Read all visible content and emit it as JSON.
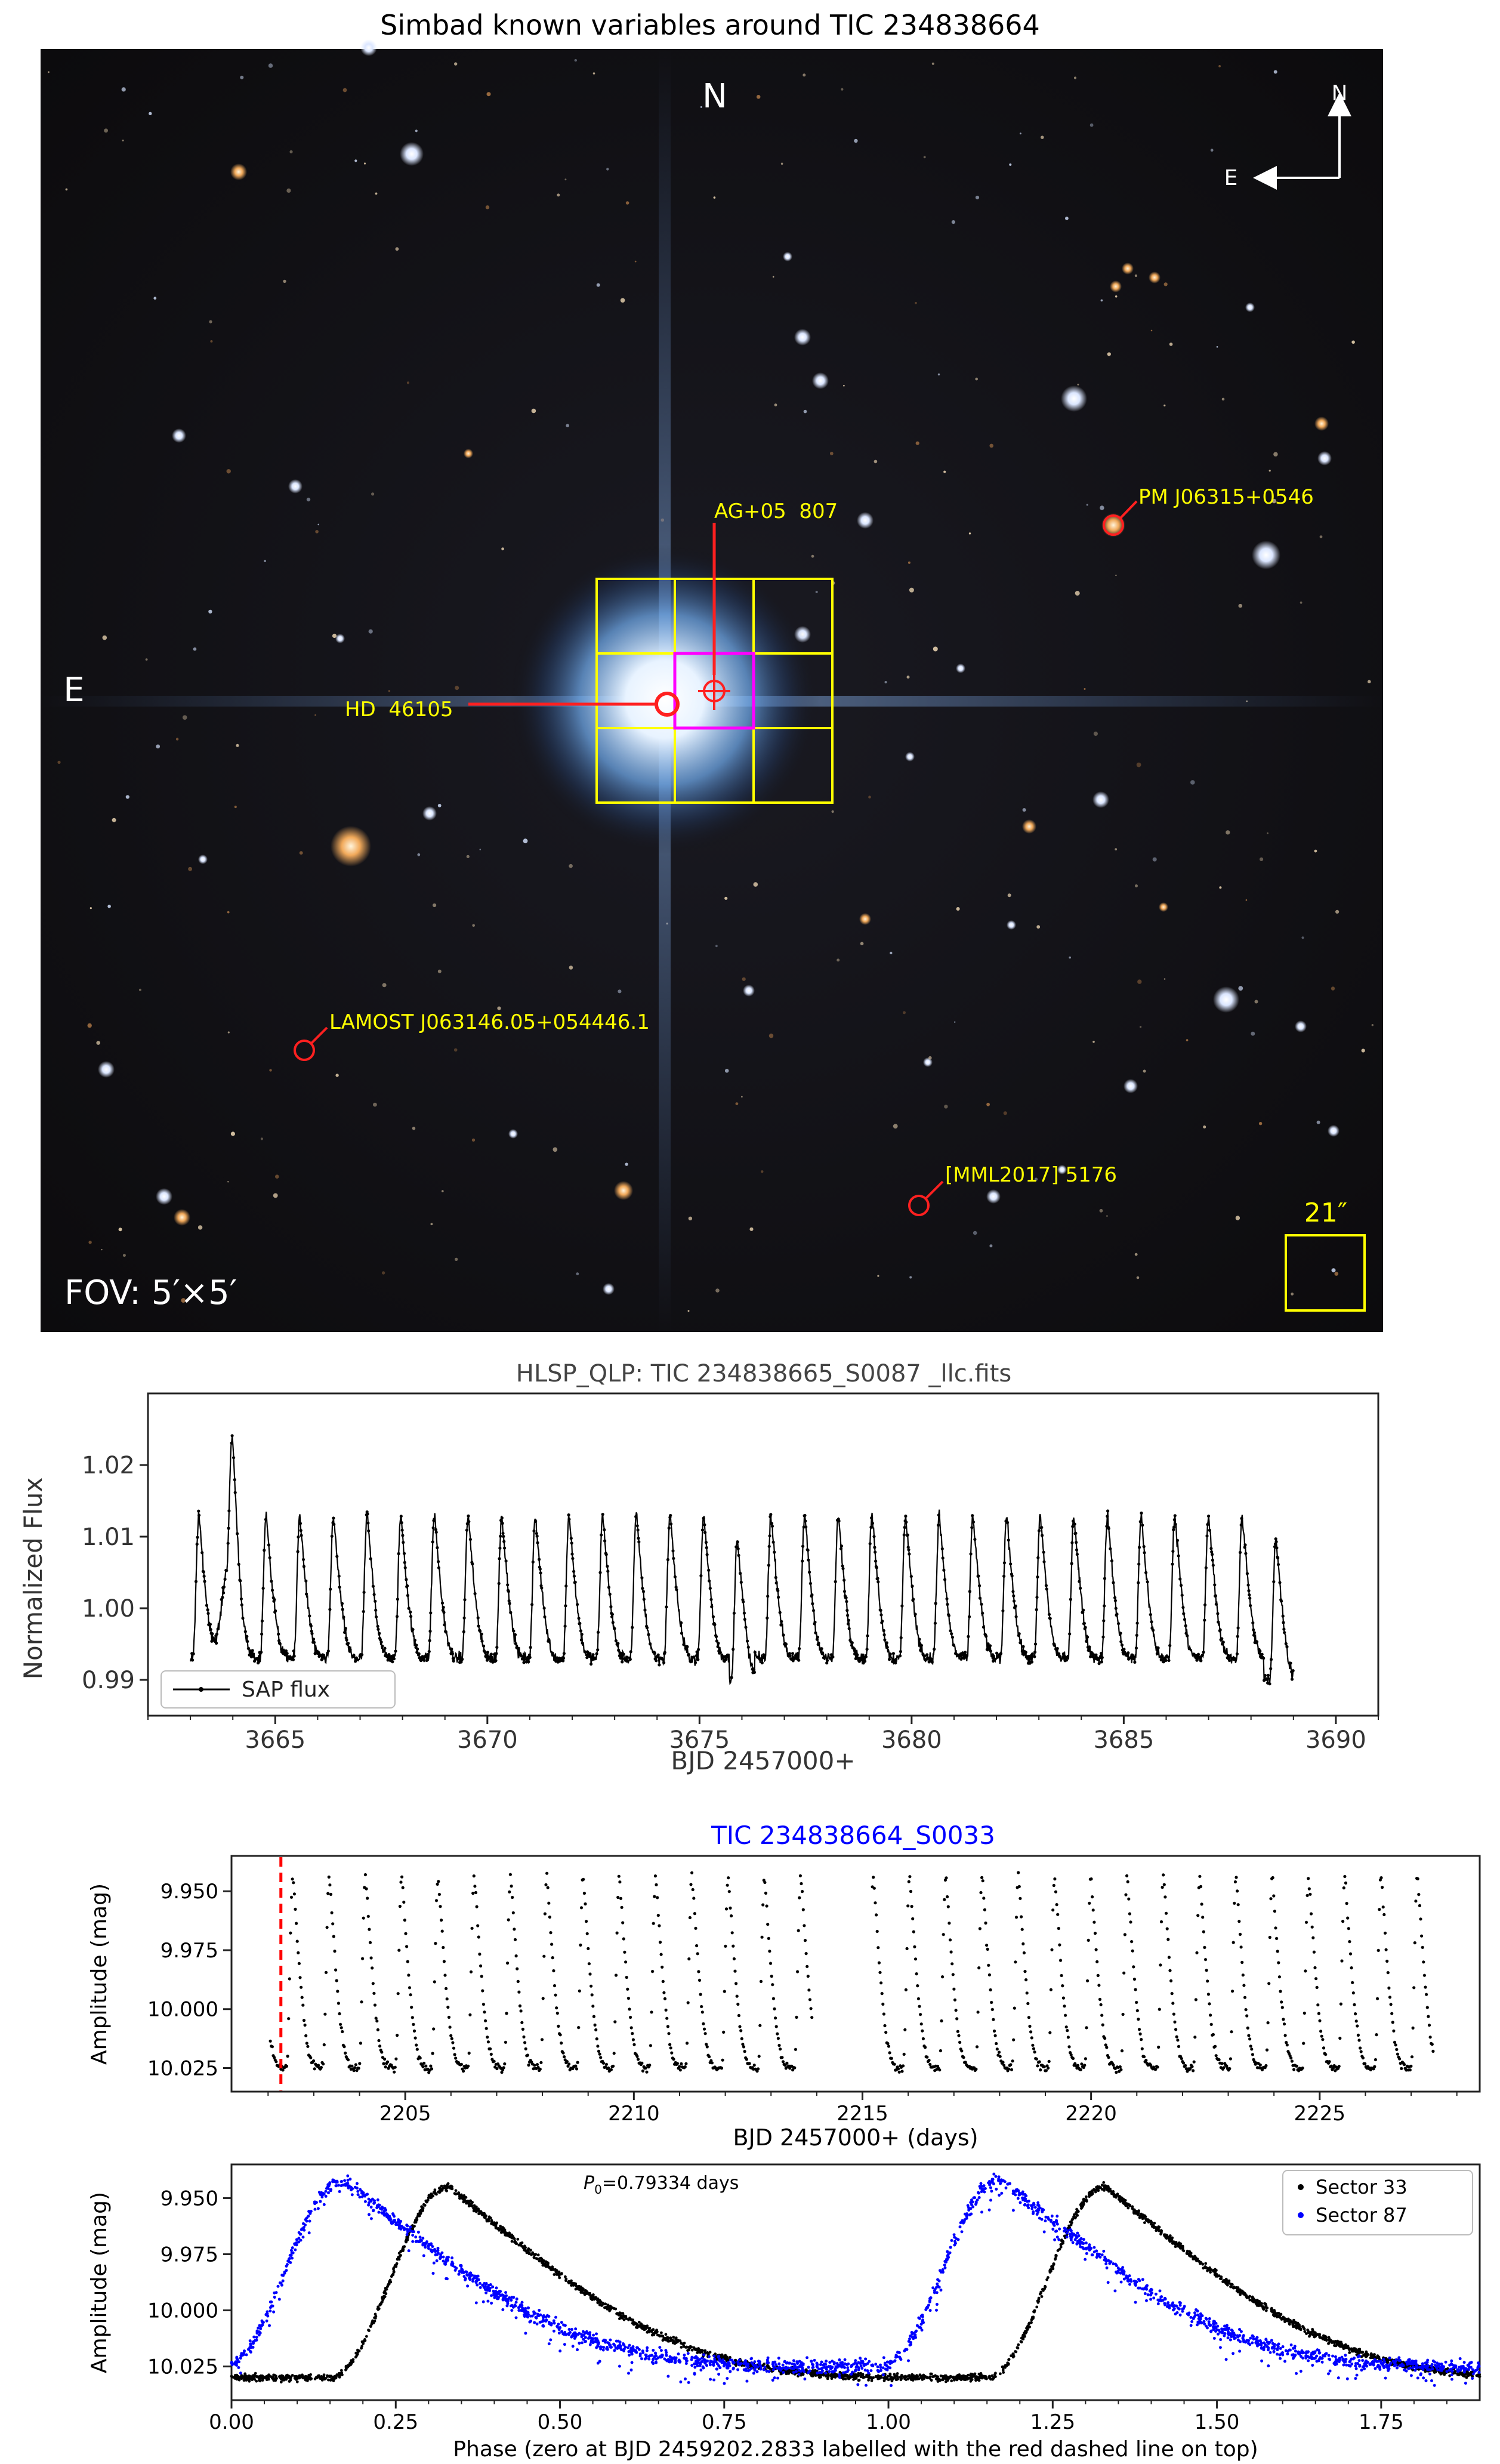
{
  "sky_panel": {
    "title": "Simbad known variables around TIC 234838664",
    "north_label": "N",
    "east_label": "E",
    "compass": {
      "north": "N",
      "east": "E"
    },
    "fov_label": "FOV: 5′×5′",
    "scale_label": "21″",
    "labels": {
      "ag": "AG+05  807",
      "hd": "HD  46105",
      "pm": "PM J06315+0546",
      "lamost": "LAMOST J063146.05+054446.1",
      "mml": "[MML2017] 5176"
    },
    "colors": {
      "marker": "#ff2020",
      "label": "#ffff00",
      "target_box": "#ff00ff",
      "grid": "#ffff00"
    }
  },
  "chart_data": [
    {
      "type": "line",
      "title": "HLSP_QLP: TIC 234838665_S0087  _llc.fits",
      "xlabel": "BJD 2457000+",
      "ylabel": "Normalized Flux",
      "xlim": [
        3662,
        3691
      ],
      "ylim": [
        0.985,
        1.03
      ],
      "xticks": [
        "3665",
        "3670",
        "3675",
        "3680",
        "3685",
        "3690"
      ],
      "yticks": [
        "0.99",
        "1.00",
        "1.01",
        "1.02"
      ],
      "legend": "SAP flux",
      "legend_position": "lower-left",
      "series": [
        {
          "name": "SAP flux",
          "color": "#000000"
        }
      ],
      "model": {
        "period_days": 0.79334,
        "epoch": 3663.2,
        "peak": 1.013,
        "trough": 0.993,
        "start": 3663.0,
        "end": 3689.0,
        "flare_time": 3663.9,
        "flare_peak": 1.026
      }
    },
    {
      "type": "scatter",
      "title": "TIC 234838664_S0033",
      "title_color": "#0000ff",
      "xlabel": "BJD 2457000+ (days)",
      "ylabel": "Amplitude (mag)",
      "xlim": [
        2201.2,
        2228.5
      ],
      "ylim": [
        10.035,
        9.935
      ],
      "xticks": [
        "2205",
        "2210",
        "2215",
        "2220",
        "2225"
      ],
      "yticks": [
        "9.950",
        "9.975",
        "10.000",
        "10.025"
      ],
      "reference_line": {
        "x": 2202.28,
        "color": "#ff0000",
        "style": "dashed"
      },
      "gap": [
        2213.9,
        2215.2
      ],
      "model": {
        "period_days": 0.79334,
        "epoch": 2202.2833,
        "max_mag": 9.943,
        "min_mag": 10.025
      }
    },
    {
      "type": "scatter",
      "xlabel": "Phase (zero at BJD 2459202.2833 labelled with the red dashed line on top)",
      "ylabel": "Amplitude (mag)",
      "annotation": "P0=0.79334 days",
      "annotation_parts": {
        "symbol": "P",
        "subscript": "0",
        "rest": "=0.79334 days"
      },
      "xlim": [
        0.0,
        1.9
      ],
      "ylim": [
        10.04,
        9.935
      ],
      "xticks": [
        "0.00",
        "0.25",
        "0.50",
        "0.75",
        "1.00",
        "1.25",
        "1.50",
        "1.75"
      ],
      "yticks": [
        "9.950",
        "9.975",
        "10.000",
        "10.025"
      ],
      "legend_position": "upper-right",
      "series": [
        {
          "name": "Sector 33",
          "color": "#000000",
          "peak_phase": 0.33,
          "max_mag": 9.945,
          "min_mag": 10.03
        },
        {
          "name": "Sector 87",
          "color": "#0000ff",
          "peak_phase": 0.17,
          "max_mag": 9.942,
          "min_mag": 10.025
        }
      ]
    }
  ]
}
